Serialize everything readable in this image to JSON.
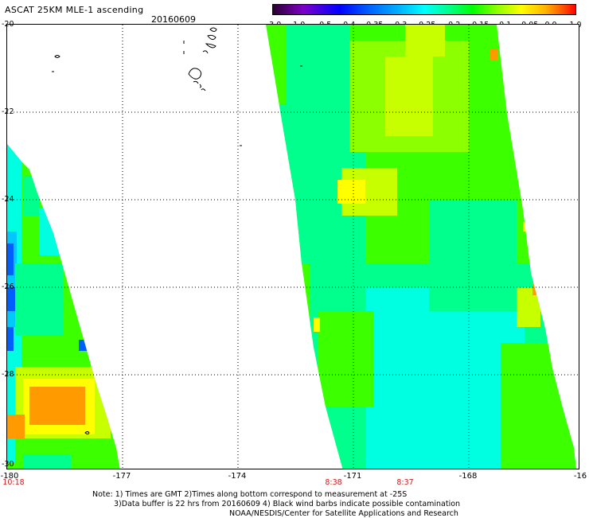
{
  "header": {
    "title": "ASCAT 25KM MLE-1 ascending",
    "date": "20160609"
  },
  "colorbar": {
    "labels": [
      "-3.0",
      "-1.0",
      "-0.5",
      "-0.4",
      "-0.35",
      "-0.3",
      "-0.25",
      "-0.2",
      "-0.15",
      "-0.1",
      "-0.05",
      "0.0",
      "1.0"
    ],
    "colors": [
      "#2a0030",
      "#7d00c8",
      "#0000ff",
      "#0064ff",
      "#00b4ff",
      "#00ffff",
      "#00ff8c",
      "#00ff00",
      "#8cff00",
      "#ffff00",
      "#ffb400",
      "#ff5000",
      "#ff0000"
    ]
  },
  "axes": {
    "y_ticks": [
      "-20",
      "-22",
      "-24",
      "-26",
      "-28",
      "-30"
    ],
    "x_ticks": [
      "-180",
      "-177",
      "-174",
      "-171",
      "-168",
      "-16"
    ]
  },
  "times": [
    "10:18",
    "8:38",
    "8:37"
  ],
  "notes": [
    "Note: 1) Times are GMT 2)Times along bottom correspond to measurement at -25S",
    "3)Data buffer is 22 hrs from 20160609 4) Black wind barbs indicate possible contamination",
    "NOAA/NESDIS/Center for Satellite Applications and Research"
  ],
  "palette": {
    "orange": "#ff9a00",
    "yellow": "#ffff00",
    "yellow_green": "#c8ff00",
    "green": "#3cff00",
    "green_cyan": "#00ff8c",
    "cyan": "#00ffe0",
    "light_blue": "#00c8ff",
    "blue": "#0060ff",
    "label_red": "#c8201e"
  }
}
